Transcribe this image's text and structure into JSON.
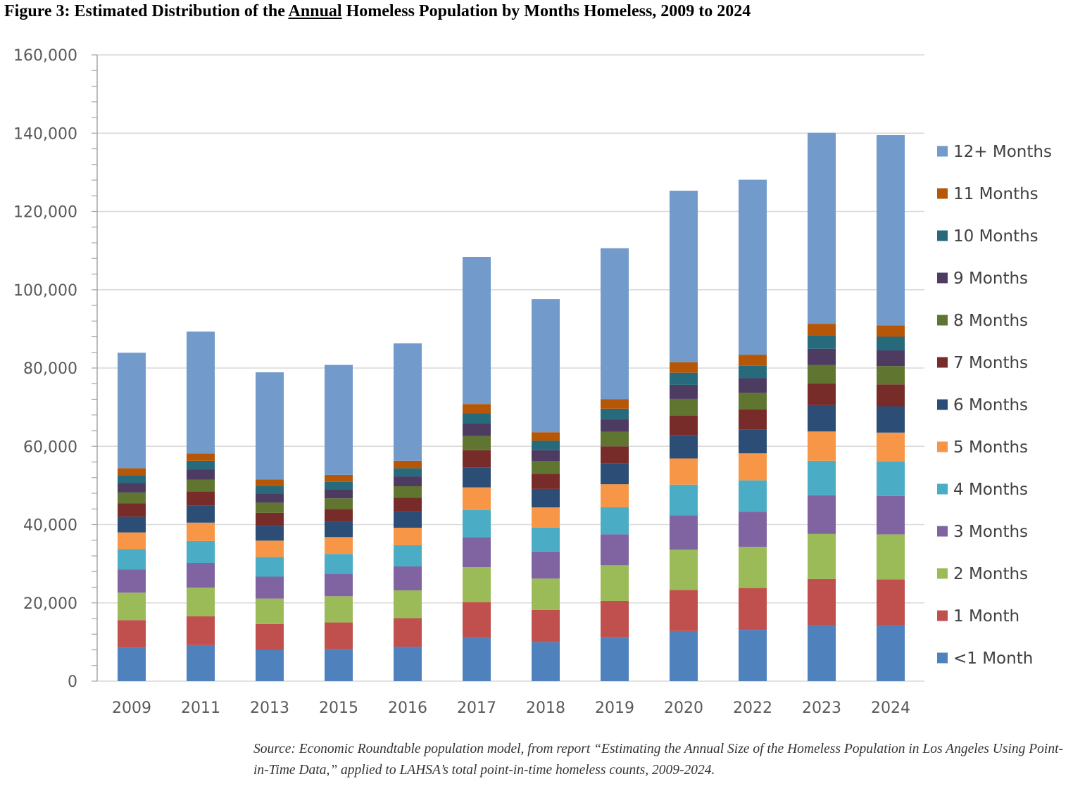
{
  "title": {
    "prefix": "Figure 3: Estimated Distribution of the ",
    "underlined": "Annual",
    "suffix": " Homeless Population by Months Homeless, 2009 to 2024"
  },
  "source_note": "Source: Economic Roundtable population model, from report “Estimating the Annual Size of the Homeless Population in Los Angeles Using Point-in-Time Data,” applied to LAHSA’s total point-in-time homeless counts, 2009-2024.",
  "chart_data": {
    "type": "bar",
    "stacked": true,
    "categories": [
      "2009",
      "2011",
      "2013",
      "2015",
      "2016",
      "2017",
      "2018",
      "2019",
      "2020",
      "2022",
      "2023",
      "2024"
    ],
    "ylim": [
      0,
      160000
    ],
    "yticks": [
      "0",
      "20,000",
      "40,000",
      "60,000",
      "80,000",
      "100,000",
      "120,000",
      "140,000",
      "160,000"
    ],
    "ytick_values": [
      0,
      20000,
      40000,
      60000,
      80000,
      100000,
      120000,
      140000,
      160000
    ],
    "grid": true,
    "legend_position": "right",
    "series": [
      {
        "name": "<1 Month",
        "color": "#4f81bd",
        "values": [
          8500,
          9200,
          8000,
          8200,
          8800,
          11100,
          10000,
          11200,
          12800,
          13100,
          14300,
          14300
        ]
      },
      {
        "name": "1 Month",
        "color": "#c0504d",
        "values": [
          7100,
          7400,
          6600,
          6800,
          7300,
          9100,
          8200,
          9300,
          10500,
          10700,
          11800,
          11700
        ]
      },
      {
        "name": "2 Months",
        "color": "#9bbb59",
        "values": [
          7000,
          7300,
          6500,
          6700,
          7100,
          8900,
          8000,
          9100,
          10300,
          10500,
          11500,
          11500
        ]
      },
      {
        "name": "3 Months",
        "color": "#8064a2",
        "values": [
          5900,
          6300,
          5600,
          5700,
          6100,
          7700,
          6900,
          7900,
          8800,
          9000,
          9900,
          9800
        ]
      },
      {
        "name": "4 Months",
        "color": "#4bacc6",
        "values": [
          5200,
          5600,
          5000,
          5100,
          5400,
          6900,
          6100,
          6900,
          7800,
          8000,
          8800,
          8800
        ]
      },
      {
        "name": "5 Months",
        "color": "#f79646",
        "values": [
          4300,
          4700,
          4200,
          4300,
          4500,
          5800,
          5200,
          5900,
          6700,
          6900,
          7500,
          7400
        ]
      },
      {
        "name": "6 Months",
        "color": "#2c4d75",
        "values": [
          4000,
          4300,
          3800,
          3900,
          4200,
          5100,
          4700,
          5300,
          6000,
          6100,
          6700,
          6700
        ]
      },
      {
        "name": "7 Months",
        "color": "#772c2a",
        "values": [
          3400,
          3700,
          3300,
          3300,
          3500,
          4400,
          3900,
          4400,
          5000,
          5100,
          5600,
          5600
        ]
      },
      {
        "name": "8 Months",
        "color": "#5f7530",
        "values": [
          2800,
          3000,
          2600,
          2700,
          2900,
          3600,
          3200,
          3700,
          4200,
          4300,
          4700,
          4700
        ]
      },
      {
        "name": "9 Months",
        "color": "#4d3b62",
        "values": [
          2400,
          2600,
          2300,
          2300,
          2500,
          3200,
          2800,
          3200,
          3600,
          3700,
          4100,
          4000
        ]
      },
      {
        "name": "10 Months",
        "color": "#276a7c",
        "values": [
          2000,
          2200,
          1900,
          1900,
          2100,
          2600,
          2400,
          2700,
          3100,
          3200,
          3500,
          3500
        ]
      },
      {
        "name": "11 Months",
        "color": "#b65708",
        "values": [
          1800,
          1900,
          1700,
          1800,
          1900,
          2400,
          2200,
          2400,
          2700,
          2800,
          2900,
          2900
        ]
      },
      {
        "name": "12+ Months",
        "color": "#729aca",
        "values": [
          29500,
          31100,
          27400,
          28100,
          30000,
          37600,
          34000,
          38600,
          43800,
          44700,
          48800,
          48600
        ]
      }
    ]
  }
}
